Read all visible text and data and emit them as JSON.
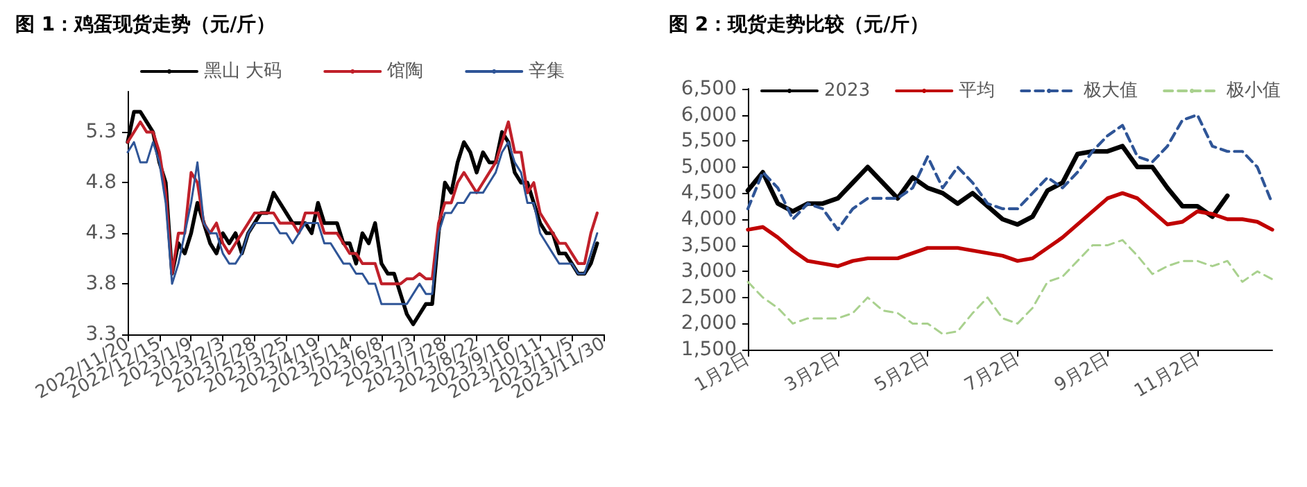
{
  "chart_data": [
    {
      "type": "line",
      "title": "图 1：鸡蛋现货走势（元/斤）",
      "categories": [
        "2022/11/20",
        null,
        null,
        null,
        null,
        "2022/12/15",
        null,
        null,
        null,
        null,
        "2023/1/9",
        null,
        null,
        null,
        null,
        "2023/2/3",
        null,
        null,
        null,
        null,
        "2023/2/28",
        null,
        null,
        null,
        null,
        "2023/3/25",
        null,
        null,
        null,
        null,
        "2023/4/19",
        null,
        null,
        null,
        null,
        "2023/5/14",
        null,
        null,
        null,
        null,
        "2023/6/8",
        null,
        null,
        null,
        null,
        "2023/7/3",
        null,
        null,
        null,
        null,
        "2023/7/28",
        null,
        null,
        null,
        null,
        "2023/8/22",
        null,
        null,
        null,
        null,
        "2023/9/16",
        null,
        null,
        null,
        null,
        "2023/10/11",
        null,
        null,
        null,
        null,
        "2023/11/5",
        null,
        null,
        null,
        null,
        "2023/11/30"
      ],
      "series": [
        {
          "name": "黑山 大码",
          "color": "#000000",
          "values": [
            5.2,
            5.5,
            5.5,
            5.4,
            5.3,
            5.0,
            4.8,
            3.9,
            4.2,
            4.1,
            4.3,
            4.6,
            4.4,
            4.2,
            4.1,
            4.3,
            4.2,
            4.3,
            4.1,
            4.3,
            4.4,
            4.5,
            4.5,
            4.7,
            4.6,
            4.5,
            4.4,
            4.4,
            4.4,
            4.3,
            4.6,
            4.4,
            4.4,
            4.4,
            4.2,
            4.2,
            4.0,
            4.3,
            4.2,
            4.4,
            4.0,
            3.9,
            3.9,
            3.7,
            3.5,
            3.4,
            3.5,
            3.6,
            3.6,
            4.3,
            4.8,
            4.7,
            5.0,
            5.2,
            5.1,
            4.9,
            5.1,
            5.0,
            5.0,
            5.3,
            5.2,
            4.9,
            4.8,
            4.8,
            4.6,
            4.4,
            4.3,
            4.3,
            4.1,
            4.1,
            4.0,
            3.9,
            3.9,
            4.0,
            4.2,
            null
          ]
        },
        {
          "name": "馆陶",
          "color": "#c0202a",
          "values": [
            5.2,
            5.3,
            5.4,
            5.3,
            5.3,
            5.1,
            4.7,
            3.9,
            4.3,
            4.3,
            4.9,
            4.8,
            4.4,
            4.3,
            4.4,
            4.2,
            4.1,
            4.2,
            4.3,
            4.4,
            4.5,
            4.5,
            4.5,
            4.5,
            4.4,
            4.4,
            4.4,
            4.3,
            4.5,
            4.5,
            4.5,
            4.3,
            4.3,
            4.3,
            4.2,
            4.1,
            4.1,
            4.0,
            4.0,
            4.0,
            3.8,
            3.8,
            3.8,
            3.8,
            3.85,
            3.85,
            3.9,
            3.85,
            3.85,
            4.4,
            4.6,
            4.6,
            4.8,
            4.9,
            4.8,
            4.7,
            4.8,
            4.9,
            5.0,
            5.2,
            5.4,
            5.1,
            5.1,
            4.7,
            4.8,
            4.5,
            4.4,
            4.3,
            4.2,
            4.2,
            4.1,
            4.0,
            4.0,
            4.3,
            4.5,
            null
          ]
        },
        {
          "name": "辛集",
          "color": "#2f5597",
          "values": [
            5.1,
            5.2,
            5.0,
            5.0,
            5.2,
            5.0,
            4.6,
            3.8,
            4.0,
            4.3,
            4.6,
            5.0,
            4.4,
            4.3,
            4.3,
            4.1,
            4.0,
            4.0,
            4.1,
            4.3,
            4.4,
            4.4,
            4.4,
            4.4,
            4.3,
            4.3,
            4.2,
            4.3,
            4.4,
            4.4,
            4.4,
            4.2,
            4.2,
            4.1,
            4.0,
            4.0,
            3.9,
            3.9,
            3.8,
            3.8,
            3.6,
            3.6,
            3.6,
            3.6,
            3.6,
            3.7,
            3.8,
            3.7,
            3.7,
            4.3,
            4.5,
            4.5,
            4.6,
            4.6,
            4.7,
            4.7,
            4.7,
            4.8,
            4.9,
            5.1,
            5.2,
            5.0,
            4.9,
            4.6,
            4.6,
            4.3,
            4.2,
            4.1,
            4.0,
            4.0,
            4.0,
            3.9,
            3.9,
            4.1,
            4.3,
            null
          ]
        }
      ],
      "ylim": [
        3.3,
        5.7
      ],
      "yticks": [
        3.3,
        3.8,
        4.3,
        4.8,
        5.3
      ],
      "legend": "top",
      "marker": "none",
      "line_style": "solid"
    },
    {
      "type": "line",
      "title": "图 2：现货走势比较（元/斤）",
      "categories": [
        "1月2日",
        null,
        null,
        null,
        null,
        null,
        "3月2日",
        null,
        null,
        null,
        null,
        null,
        "5月2日",
        null,
        null,
        null,
        null,
        null,
        "7月2日",
        null,
        null,
        null,
        null,
        null,
        "9月2日",
        null,
        null,
        null,
        null,
        null,
        "11月2日",
        null,
        null,
        null,
        null,
        null
      ],
      "series": [
        {
          "name": "2023",
          "color": "#000000",
          "line_style": "solid",
          "values": [
            4550,
            4900,
            4300,
            4150,
            4300,
            4300,
            4400,
            4700,
            5000,
            4700,
            4400,
            4800,
            4600,
            4500,
            4300,
            4500,
            4250,
            4000,
            3900,
            4050,
            4550,
            4700,
            5250,
            5300,
            5300,
            5400,
            5000,
            5000,
            4600,
            4250,
            4250,
            4050,
            4450,
            null,
            null,
            null
          ]
        },
        {
          "name": "平均",
          "color": "#c00000",
          "line_style": "solid",
          "values": [
            3800,
            3850,
            3650,
            3400,
            3200,
            3150,
            3100,
            3200,
            3250,
            3250,
            3250,
            3350,
            3450,
            3450,
            3450,
            3400,
            3350,
            3300,
            3200,
            3250,
            3450,
            3650,
            3900,
            4150,
            4400,
            4500,
            4400,
            4150,
            3900,
            3950,
            4150,
            4100,
            4000,
            4000,
            3950,
            3800
          ]
        },
        {
          "name": "极大值",
          "color": "#2f5597",
          "line_style": "dashed",
          "values": [
            4200,
            4900,
            4600,
            4000,
            4300,
            4200,
            3800,
            4200,
            4400,
            4400,
            4400,
            4600,
            5200,
            4600,
            5000,
            4700,
            4300,
            4200,
            4200,
            4500,
            4800,
            4600,
            4900,
            5300,
            5600,
            5800,
            5200,
            5100,
            5400,
            5900,
            6000,
            5400,
            5300,
            5300,
            5000,
            4300
          ]
        },
        {
          "name": "极小值",
          "color": "#a9d18e",
          "line_style": "dashed",
          "values": [
            2800,
            2500,
            2300,
            2000,
            2100,
            2100,
            2100,
            2200,
            2500,
            2250,
            2200,
            2000,
            2000,
            1800,
            1850,
            2200,
            2500,
            2100,
            2000,
            2300,
            2800,
            2900,
            3200,
            3500,
            3500,
            3600,
            3300,
            2950,
            3100,
            3200,
            3200,
            3100,
            3200,
            2800,
            3000,
            2850
          ]
        }
      ],
      "ylim": [
        1500,
        6500
      ],
      "yticks": [
        {
          "value": 1500,
          "label": "1,500"
        },
        {
          "value": 2000,
          "label": "2,000"
        },
        {
          "value": 2500,
          "label": "2,500"
        },
        {
          "value": 3000,
          "label": "3,000"
        },
        {
          "value": 3500,
          "label": "3,500"
        },
        {
          "value": 4000,
          "label": "4,000"
        },
        {
          "value": 4500,
          "label": "4,500"
        },
        {
          "value": 5000,
          "label": "5,000"
        },
        {
          "value": 5500,
          "label": "5,500"
        },
        {
          "value": 6000,
          "label": "6,000"
        },
        {
          "value": 6500,
          "label": "6,500"
        }
      ],
      "legend": "top",
      "marker": "none"
    }
  ]
}
